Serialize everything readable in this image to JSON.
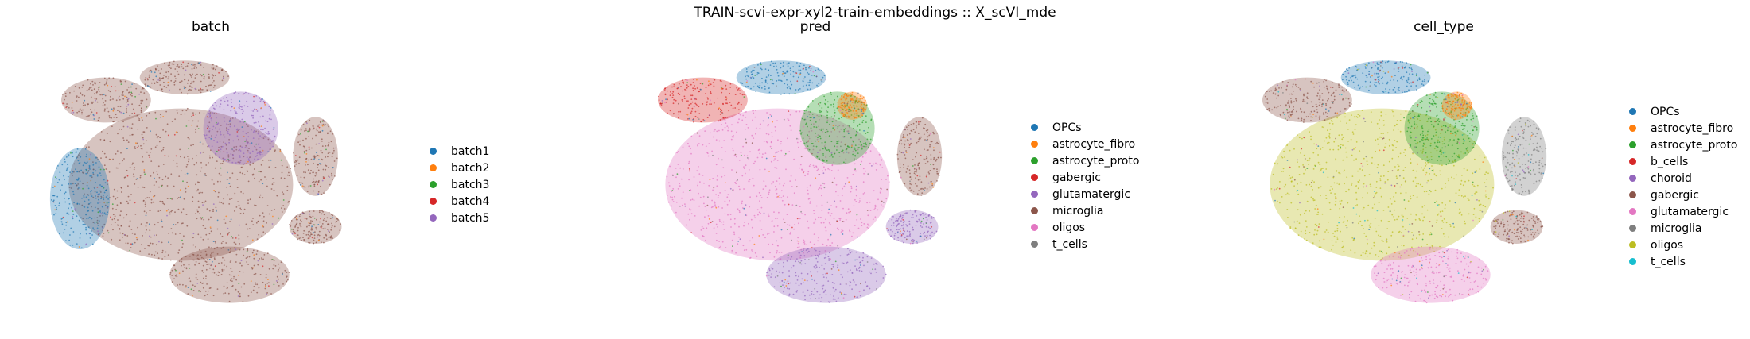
{
  "figure": {
    "suptitle": "TRAIN-scvi-expr-xyl2-train-embeddings :: X_scVI_mde"
  },
  "chart_data": [
    {
      "type": "scatter",
      "title": "batch",
      "legend_position": "right",
      "categories": [
        "batch1",
        "batch2",
        "batch3",
        "batch4",
        "batch5"
      ],
      "colors": [
        "#1f77b4",
        "#ff7f0e",
        "#2ca02c",
        "#d62728",
        "#9467bd"
      ],
      "clusters": [
        {
          "cx": 0.42,
          "cy": 0.5,
          "rx": 0.3,
          "ry": 0.27,
          "color": "#8c564b"
        },
        {
          "cx": 0.15,
          "cy": 0.55,
          "rx": 0.08,
          "ry": 0.18,
          "color": "#1f77b4"
        },
        {
          "cx": 0.43,
          "cy": 0.12,
          "rx": 0.12,
          "ry": 0.06,
          "color": "#8c564b"
        },
        {
          "cx": 0.58,
          "cy": 0.3,
          "rx": 0.1,
          "ry": 0.13,
          "color": "#9467bd"
        },
        {
          "cx": 0.78,
          "cy": 0.4,
          "rx": 0.06,
          "ry": 0.14,
          "color": "#8c564b"
        },
        {
          "cx": 0.78,
          "cy": 0.65,
          "rx": 0.07,
          "ry": 0.06,
          "color": "#8c564b"
        },
        {
          "cx": 0.55,
          "cy": 0.82,
          "rx": 0.16,
          "ry": 0.1,
          "color": "#8c564b"
        },
        {
          "cx": 0.22,
          "cy": 0.2,
          "rx": 0.12,
          "ry": 0.08,
          "color": "#8c564b"
        }
      ]
    },
    {
      "type": "scatter",
      "title": "pred",
      "legend_position": "right",
      "categories": [
        "OPCs",
        "astrocyte_fibro",
        "astrocyte_proto",
        "gabergic",
        "glutamatergic",
        "microglia",
        "oligos",
        "t_cells"
      ],
      "colors": [
        "#1f77b4",
        "#ff7f0e",
        "#2ca02c",
        "#d62728",
        "#9467bd",
        "#8c564b",
        "#e377c2",
        "#7f7f7f"
      ],
      "clusters": [
        {
          "cx": 0.42,
          "cy": 0.5,
          "rx": 0.3,
          "ry": 0.27,
          "color": "#e377c2"
        },
        {
          "cx": 0.43,
          "cy": 0.12,
          "rx": 0.12,
          "ry": 0.06,
          "color": "#1f77b4"
        },
        {
          "cx": 0.58,
          "cy": 0.3,
          "rx": 0.1,
          "ry": 0.13,
          "color": "#2ca02c"
        },
        {
          "cx": 0.62,
          "cy": 0.22,
          "rx": 0.04,
          "ry": 0.05,
          "color": "#ff7f0e"
        },
        {
          "cx": 0.8,
          "cy": 0.4,
          "rx": 0.06,
          "ry": 0.14,
          "color": "#8c564b"
        },
        {
          "cx": 0.78,
          "cy": 0.65,
          "rx": 0.07,
          "ry": 0.06,
          "color": "#9467bd"
        },
        {
          "cx": 0.55,
          "cy": 0.82,
          "rx": 0.16,
          "ry": 0.1,
          "color": "#9467bd"
        },
        {
          "cx": 0.22,
          "cy": 0.2,
          "rx": 0.12,
          "ry": 0.08,
          "color": "#d62728"
        }
      ]
    },
    {
      "type": "scatter",
      "title": "cell_type",
      "legend_position": "right",
      "categories": [
        "OPCs",
        "astrocyte_fibro",
        "astrocyte_proto",
        "b_cells",
        "choroid",
        "gabergic",
        "glutamatergic",
        "microglia",
        "oligos",
        "t_cells"
      ],
      "colors": [
        "#1f77b4",
        "#ff7f0e",
        "#2ca02c",
        "#d62728",
        "#9467bd",
        "#8c564b",
        "#e377c2",
        "#7f7f7f",
        "#bcbd22",
        "#17becf"
      ],
      "clusters": [
        {
          "cx": 0.42,
          "cy": 0.5,
          "rx": 0.3,
          "ry": 0.27,
          "color": "#bcbd22"
        },
        {
          "cx": 0.43,
          "cy": 0.12,
          "rx": 0.12,
          "ry": 0.06,
          "color": "#1f77b4"
        },
        {
          "cx": 0.58,
          "cy": 0.3,
          "rx": 0.1,
          "ry": 0.13,
          "color": "#2ca02c"
        },
        {
          "cx": 0.62,
          "cy": 0.22,
          "rx": 0.04,
          "ry": 0.05,
          "color": "#ff7f0e"
        },
        {
          "cx": 0.8,
          "cy": 0.4,
          "rx": 0.06,
          "ry": 0.14,
          "color": "#7f7f7f"
        },
        {
          "cx": 0.78,
          "cy": 0.65,
          "rx": 0.07,
          "ry": 0.06,
          "color": "#8c564b"
        },
        {
          "cx": 0.55,
          "cy": 0.82,
          "rx": 0.16,
          "ry": 0.1,
          "color": "#e377c2"
        },
        {
          "cx": 0.22,
          "cy": 0.2,
          "rx": 0.12,
          "ry": 0.08,
          "color": "#8c564b"
        }
      ]
    }
  ]
}
